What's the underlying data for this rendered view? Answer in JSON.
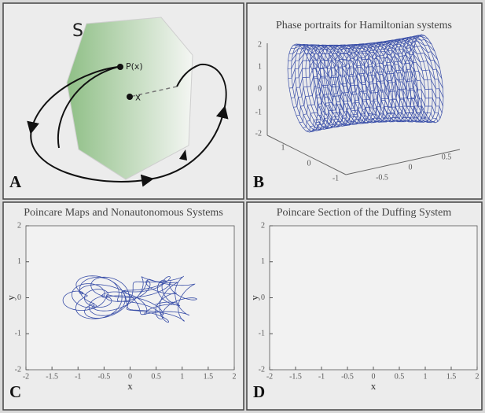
{
  "panels": [
    {
      "letter": "A",
      "labels": {
        "set": "S",
        "point_p": "P(x)",
        "point_x": "x"
      }
    },
    {
      "letter": "B",
      "title": "Phase portraits for Hamiltonian systems",
      "z_ticks": [
        2,
        1,
        0,
        -1,
        -2
      ],
      "x_ticks": [
        1,
        0,
        -1
      ],
      "y_ticks": [
        0.5,
        0,
        -0.5
      ]
    },
    {
      "letter": "C",
      "title": "Poincare Maps and Nonautonomous Systems",
      "xlabel": "x",
      "ylabel": "y",
      "xlim": [
        -2,
        2
      ],
      "ylim": [
        -2,
        2
      ],
      "xticks": [
        -2,
        -1.5,
        -1,
        -0.5,
        0,
        0.5,
        1,
        1.5,
        2
      ],
      "yticks": [
        -2,
        -1,
        0,
        1,
        2
      ]
    },
    {
      "letter": "D",
      "title": "Poincare Section of the Duffing System",
      "xlabel": "x",
      "ylabel": "y",
      "xlim": [
        -2,
        2
      ],
      "ylim": [
        -2,
        2
      ],
      "xticks": [
        -2,
        -1.5,
        -1,
        -0.5,
        0,
        0.5,
        1,
        1.5,
        2
      ],
      "yticks": [
        -2,
        -1,
        0,
        1,
        2
      ]
    }
  ]
}
